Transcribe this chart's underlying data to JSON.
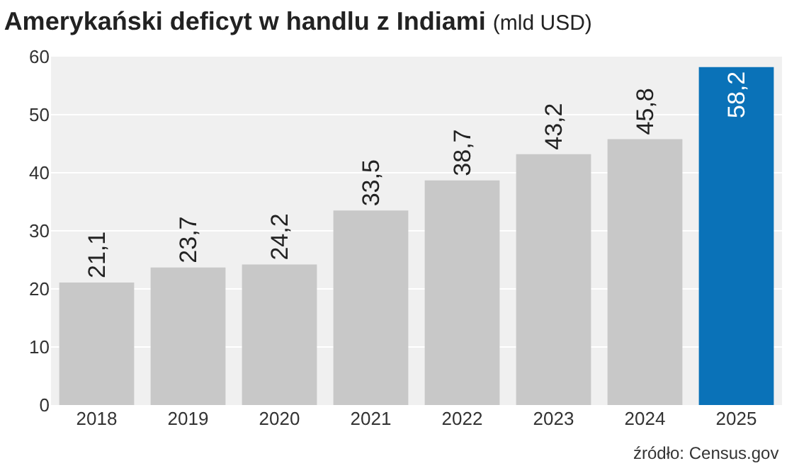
{
  "chart_data": {
    "type": "bar",
    "title": "Amerykański deficyt w handlu z Indiami",
    "subtitle": "(mld USD)",
    "categories": [
      "2018",
      "2019",
      "2020",
      "2021",
      "2022",
      "2023",
      "2024",
      "2025"
    ],
    "values": [
      21.1,
      23.7,
      24.2,
      33.5,
      38.7,
      43.2,
      45.8,
      58.2
    ],
    "value_labels": [
      "21,1",
      "23,7",
      "24,2",
      "33,5",
      "38,7",
      "43,2",
      "45,8",
      "58,2"
    ],
    "colors": [
      "#c8c8c8",
      "#c8c8c8",
      "#c8c8c8",
      "#c8c8c8",
      "#c8c8c8",
      "#c8c8c8",
      "#c8c8c8",
      "#0a72b8"
    ],
    "ylim": [
      0,
      60
    ],
    "yticks": [
      0,
      10,
      20,
      30,
      40,
      50,
      60
    ],
    "grid": "y",
    "annotations": [
      "źródło: Census.gov"
    ]
  }
}
